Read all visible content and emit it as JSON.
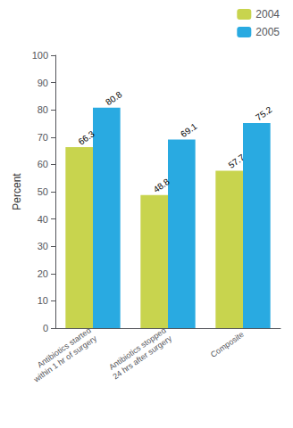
{
  "chart_data": {
    "type": "bar",
    "categories": [
      "Antibiotics started\nwithin 1 hr of surgery",
      "Antibiotics stopped\n24 hrs after surgery",
      "Composite"
    ],
    "series": [
      {
        "name": "2004",
        "color": "#c8d44e",
        "values": [
          66.3,
          48.8,
          57.7
        ]
      },
      {
        "name": "2005",
        "color": "#29aae1",
        "values": [
          80.8,
          69.1,
          75.2
        ]
      }
    ],
    "ylabel": "Percent",
    "ylim": [
      0,
      100
    ],
    "yticks": [
      0,
      10,
      20,
      30,
      40,
      50,
      60,
      70,
      80,
      90,
      100
    ],
    "grid": false,
    "legend": "upper right",
    "data_labels": true
  }
}
